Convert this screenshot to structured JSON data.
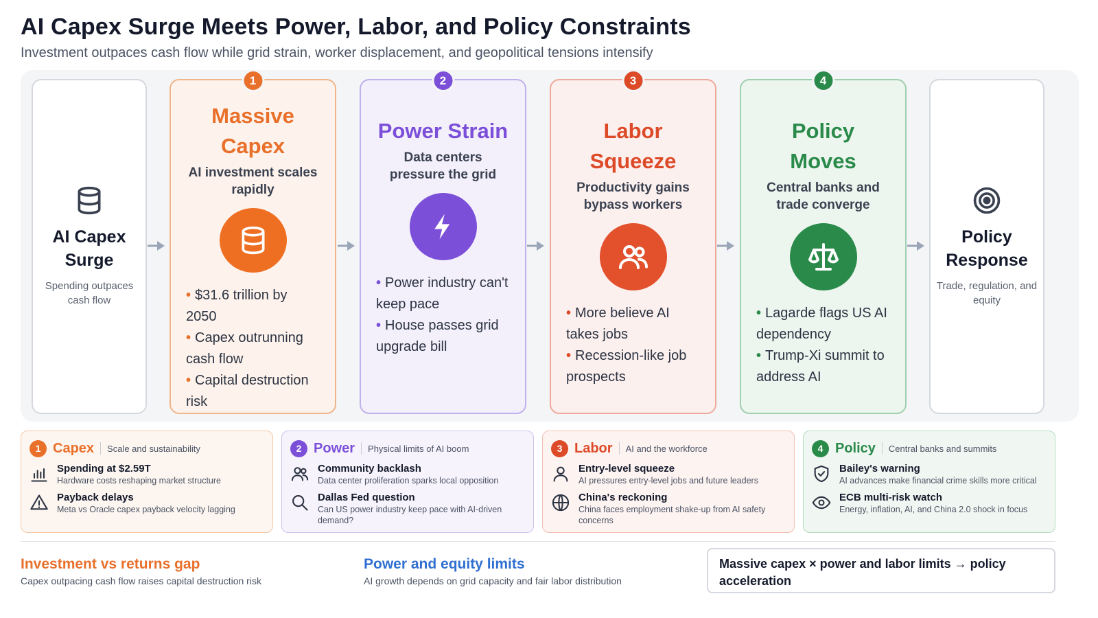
{
  "header": {
    "title": "AI Capex Surge Meets Power, Labor, and Policy Constraints",
    "subtitle": "Investment outpaces cash flow while grid strain, worker displacement, and geopolitical tensions intensify"
  },
  "start": {
    "name": "AI Capex Surge",
    "desc": "Spending outpaces cash flow",
    "icon": "database-icon"
  },
  "end": {
    "name": "Policy Response",
    "desc": "Trade, regulation, and equity",
    "icon": "target-icon"
  },
  "stages": [
    {
      "num": "1",
      "title": "Massive Capex",
      "subtitle": "AI investment scales rapidly",
      "icon": "database-icon",
      "color": "#e8702a",
      "bullets": [
        "$31.6 trillion by 2050",
        "Capex outrunning cash flow",
        "Capital destruction risk"
      ]
    },
    {
      "num": "2",
      "title": "Power Strain",
      "subtitle": "Data centers pressure the grid",
      "icon": "lightning-icon",
      "color": "#7c4fd8",
      "bullets": [
        "Power industry can't keep pace",
        "House passes grid upgrade bill"
      ]
    },
    {
      "num": "3",
      "title": "Labor Squeeze",
      "subtitle": "Productivity gains bypass workers",
      "icon": "users-icon",
      "color": "#dd4a28",
      "bullets": [
        "More believe AI takes jobs",
        "Recession-like job prospects"
      ]
    },
    {
      "num": "4",
      "title": "Policy Moves",
      "subtitle": "Central banks and trade converge",
      "icon": "scale-icon",
      "color": "#2a8a4a",
      "bullets": [
        "Lagarde flags US AI dependency",
        "Trump-Xi summit to address AI"
      ]
    }
  ],
  "panels": [
    {
      "num": "1",
      "name": "Capex",
      "desc": "Scale and sustainability",
      "items": [
        {
          "icon": "bar-chart-icon",
          "title": "Spending at $2.59T",
          "text": "Hardware costs reshaping market structure"
        },
        {
          "icon": "warning-icon",
          "title": "Payback delays",
          "text": "Meta vs Oracle capex payback velocity lagging"
        }
      ]
    },
    {
      "num": "2",
      "name": "Power",
      "desc": "Physical limits of AI boom",
      "items": [
        {
          "icon": "people-icon",
          "title": "Community backlash",
          "text": "Data center proliferation sparks local opposition"
        },
        {
          "icon": "search-icon",
          "title": "Dallas Fed question",
          "text": "Can US power industry keep pace with AI-driven demand?"
        }
      ]
    },
    {
      "num": "3",
      "name": "Labor",
      "desc": "AI and the workforce",
      "items": [
        {
          "icon": "person-icon",
          "title": "Entry-level squeeze",
          "text": "AI pressures entry-level jobs and future leaders"
        },
        {
          "icon": "globe-icon",
          "title": "China's reckoning",
          "text": "China faces employment shake-up from AI safety concerns"
        }
      ]
    },
    {
      "num": "4",
      "name": "Policy",
      "desc": "Central banks and summits",
      "items": [
        {
          "icon": "shield-icon",
          "title": "Bailey's warning",
          "text": "AI advances make financial crime skills more critical"
        },
        {
          "icon": "eye-icon",
          "title": "ECB multi-risk watch",
          "text": "Energy, inflation, AI, and China 2.0 shock in focus"
        }
      ]
    }
  ],
  "footer": {
    "left": {
      "heading": "Investment vs returns gap",
      "text": "Capex outpacing cash flow raises capital destruction risk",
      "color": "#e8702a"
    },
    "middle": {
      "heading": "Power and equity limits",
      "text": "AI growth depends on grid capacity and fair labor distribution",
      "color": "#2f6fd1"
    },
    "callout": "Massive capex × power and labor limits → policy acceleration"
  }
}
